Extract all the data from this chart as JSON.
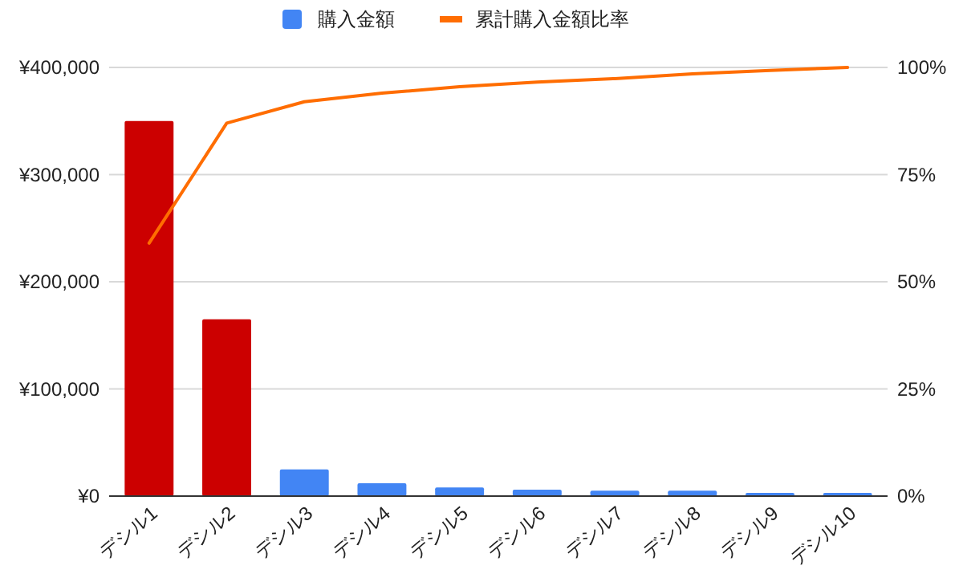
{
  "chart_data": {
    "type": "bar",
    "categories": [
      "デシル1",
      "デシル2",
      "デシル3",
      "デシル4",
      "デシル5",
      "デシル6",
      "デシル7",
      "デシル8",
      "デシル9",
      "デシル10"
    ],
    "series": [
      {
        "name": "購入金額",
        "color": "#4285f4",
        "colors": [
          "#cc0000",
          "#cc0000",
          "#4285f4",
          "#4285f4",
          "#4285f4",
          "#4285f4",
          "#4285f4",
          "#4285f4",
          "#4285f4",
          "#4285f4"
        ],
        "values": [
          350000,
          165000,
          25000,
          12000,
          8000,
          6000,
          5000,
          5000,
          3000,
          3000
        ]
      },
      {
        "name": "累計購入金額比率",
        "type": "line",
        "axis": "y2",
        "color": "#ff6d01",
        "values": [
          59,
          87,
          92,
          94,
          95.5,
          96.6,
          97.4,
          98.5,
          99.3,
          100
        ]
      }
    ],
    "ylim": [
      0,
      400000
    ],
    "yticks": [
      {
        "value": 0,
        "label": "¥0"
      },
      {
        "value": 100000,
        "label": "¥100,000"
      },
      {
        "value": 200000,
        "label": "¥200,000"
      },
      {
        "value": 300000,
        "label": "¥300,000"
      },
      {
        "value": 400000,
        "label": "¥400,000"
      }
    ],
    "y2lim": [
      0,
      100
    ],
    "y2ticks": [
      {
        "value": 0,
        "label": "0%"
      },
      {
        "value": 25,
        "label": "25%"
      },
      {
        "value": 50,
        "label": "50%"
      },
      {
        "value": 75,
        "label": "75%"
      },
      {
        "value": 100,
        "label": "100%"
      }
    ],
    "grid": "y",
    "legend": "top",
    "marker": "none"
  }
}
